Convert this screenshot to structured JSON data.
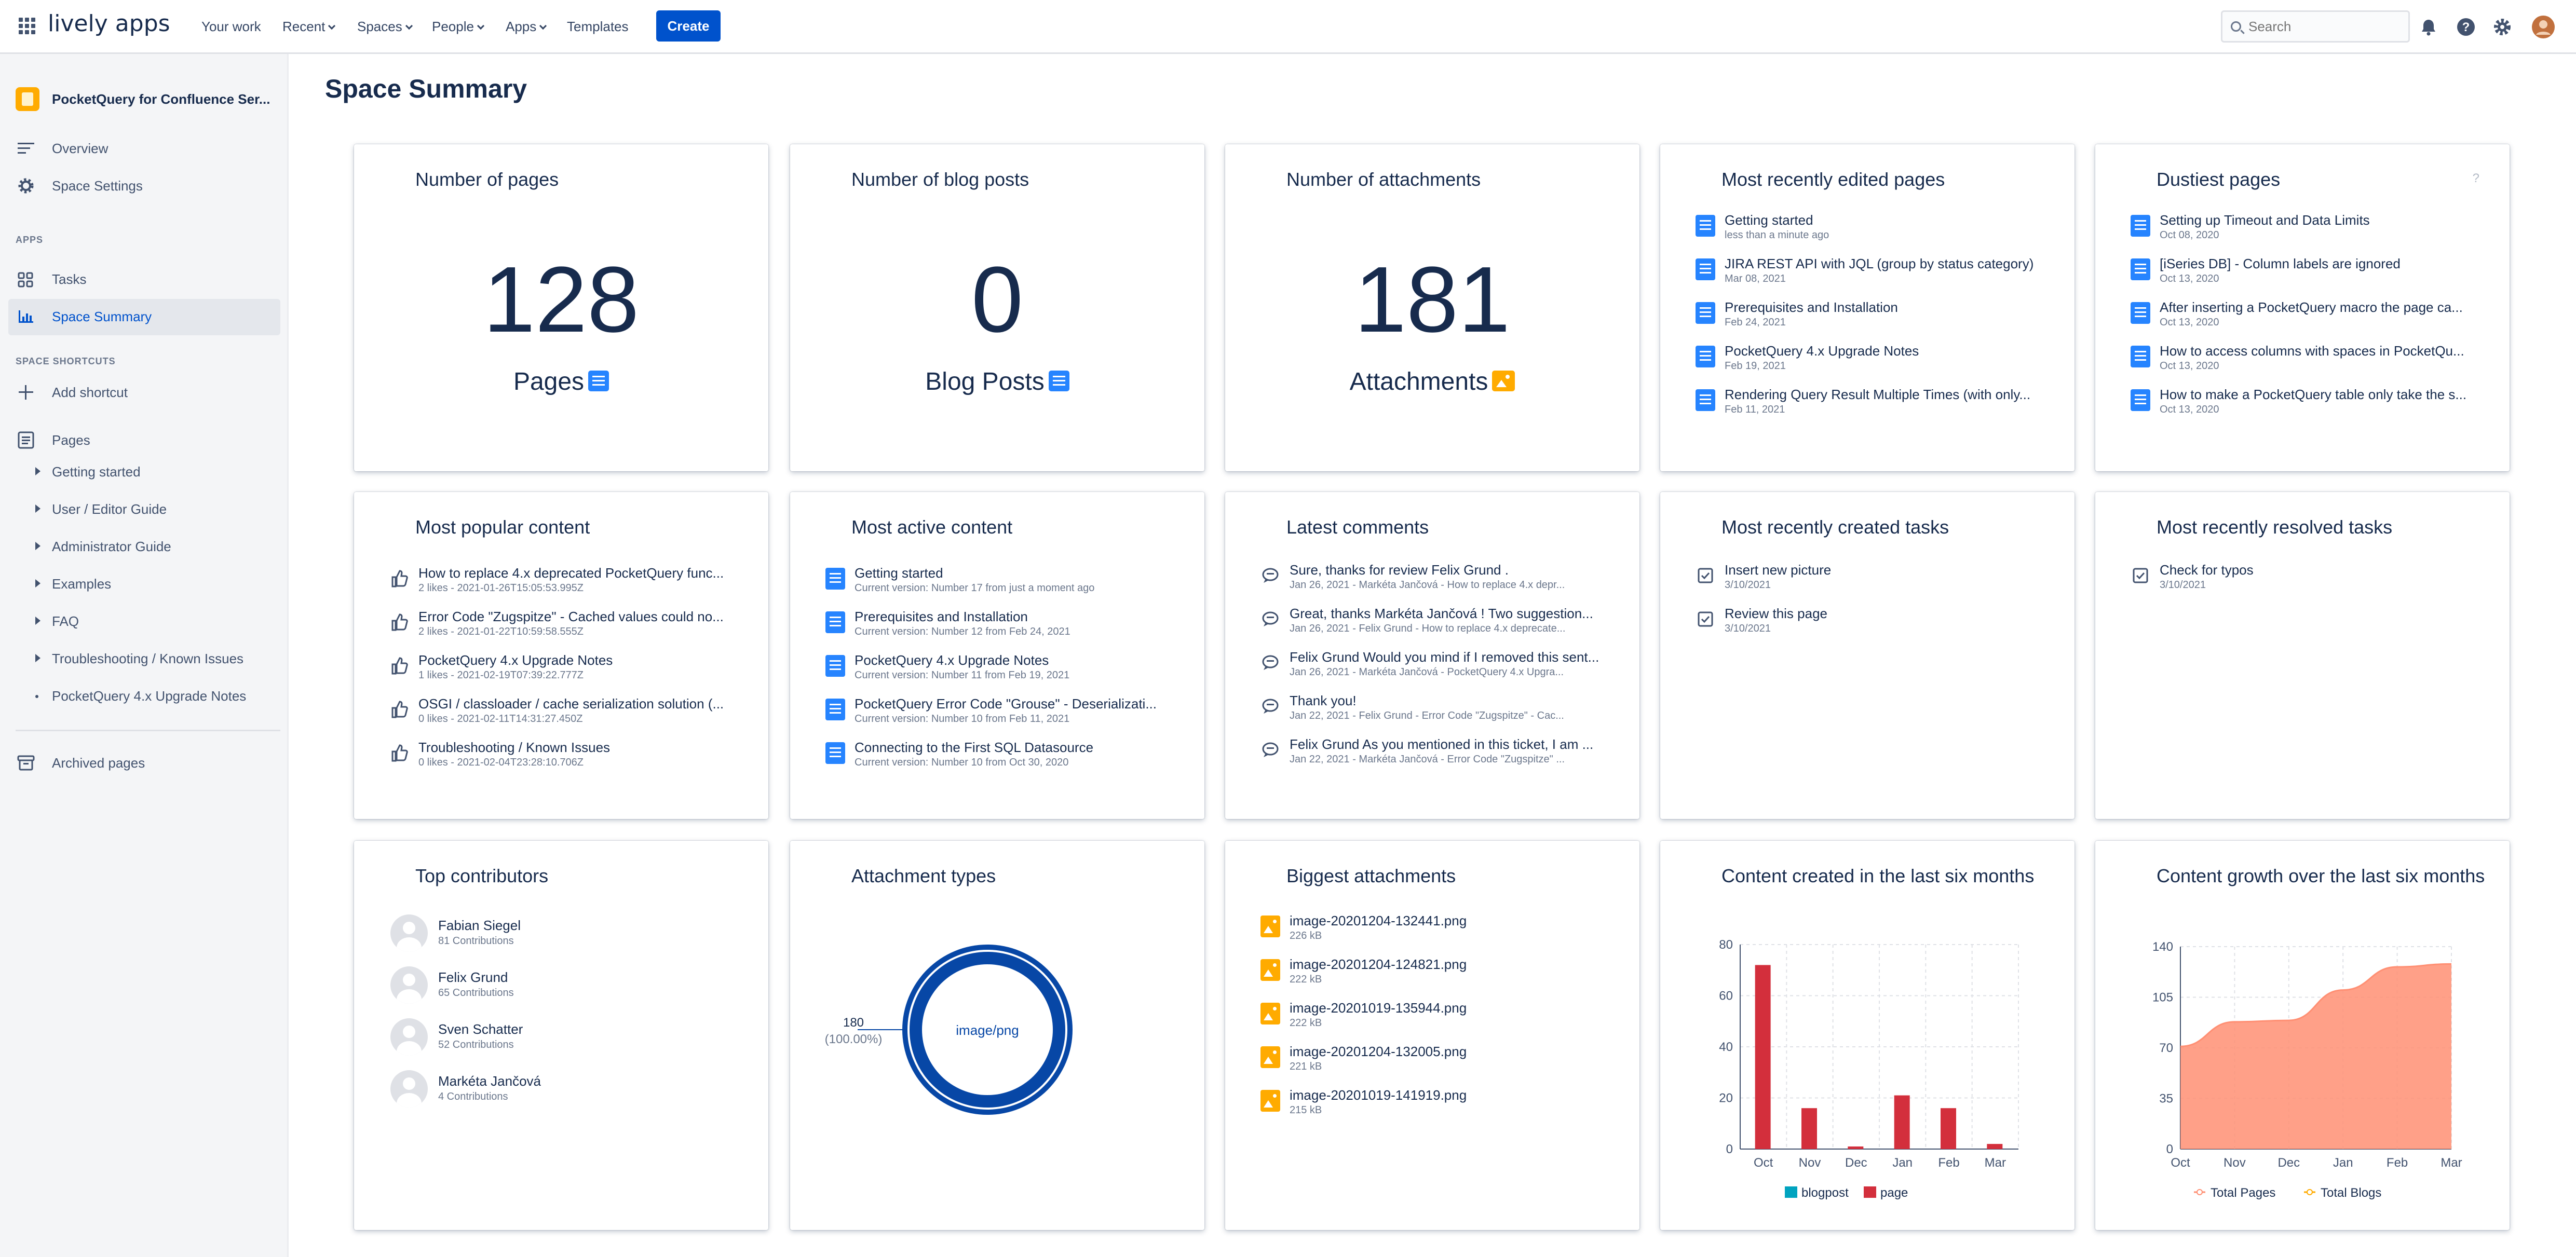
{
  "topbar": {
    "logo": "lively apps",
    "nav": [
      "Your work",
      "Recent",
      "Spaces",
      "People",
      "Apps",
      "Templates"
    ],
    "create_label": "Create",
    "search_placeholder": "Search"
  },
  "sidebar": {
    "space_title": "PocketQuery for Confluence Ser...",
    "overview": "Overview",
    "space_settings": "Space Settings",
    "apps_heading": "APPS",
    "tasks": "Tasks",
    "space_summary": "Space Summary",
    "shortcuts_heading": "SPACE SHORTCUTS",
    "add_shortcut": "Add shortcut",
    "pages": "Pages",
    "tree": [
      "Getting started",
      "User / Editor Guide",
      "Administrator Guide",
      "Examples",
      "FAQ",
      "Troubleshooting / Known Issues",
      "PocketQuery 4.x Upgrade Notes"
    ],
    "archived": "Archived pages"
  },
  "page_title": "Space Summary",
  "cards": {
    "pages": {
      "title": "Number of pages",
      "value": "128",
      "label": "Pages"
    },
    "blogs": {
      "title": "Number of blog posts",
      "value": "0",
      "label": "Blog Posts"
    },
    "attachments": {
      "title": "Number of attachments",
      "value": "181",
      "label": "Attachments"
    },
    "recent_edited": {
      "title": "Most recently edited pages",
      "items": [
        {
          "t": "Getting started",
          "s": "less than a minute ago"
        },
        {
          "t": "JIRA REST API with JQL (group by status category)",
          "s": "Mar 08, 2021"
        },
        {
          "t": "Prerequisites and Installation",
          "s": "Feb 24, 2021"
        },
        {
          "t": "PocketQuery 4.x Upgrade Notes",
          "s": "Feb 19, 2021"
        },
        {
          "t": "Rendering Query Result Multiple Times (with only...",
          "s": "Feb 11, 2021"
        }
      ]
    },
    "dustiest": {
      "title": "Dustiest pages",
      "help": "?",
      "items": [
        {
          "t": "Setting up Timeout and Data Limits",
          "s": "Oct 08, 2020"
        },
        {
          "t": "[iSeries DB] - Column labels are ignored",
          "s": "Oct 13, 2020"
        },
        {
          "t": "After inserting a PocketQuery macro the page ca...",
          "s": "Oct 13, 2020"
        },
        {
          "t": "How to access columns with spaces in PocketQu...",
          "s": "Oct 13, 2020"
        },
        {
          "t": "How to make a PocketQuery table only take the s...",
          "s": "Oct 13, 2020"
        }
      ]
    },
    "popular": {
      "title": "Most popular content",
      "items": [
        {
          "t": "How to replace 4.x deprecated PocketQuery func...",
          "s": "2 likes - 2021-01-26T15:05:53.995Z"
        },
        {
          "t": "Error Code \"Zugspitze\" - Cached values could no...",
          "s": "2 likes - 2021-01-22T10:59:58.555Z"
        },
        {
          "t": "PocketQuery 4.x Upgrade Notes",
          "s": "1 likes - 2021-02-19T07:39:22.777Z"
        },
        {
          "t": "OSGI / classloader / cache serialization solution (...",
          "s": "0 likes - 2021-02-11T14:31:27.450Z"
        },
        {
          "t": "Troubleshooting / Known Issues",
          "s": "0 likes - 2021-02-04T23:28:10.706Z"
        }
      ]
    },
    "active": {
      "title": "Most active content",
      "items": [
        {
          "t": "Getting started",
          "s": "Current version: Number 17 from just a moment ago"
        },
        {
          "t": "Prerequisites and Installation",
          "s": "Current version: Number 12 from Feb 24, 2021"
        },
        {
          "t": "PocketQuery 4.x Upgrade Notes",
          "s": "Current version: Number 11 from Feb 19, 2021"
        },
        {
          "t": "PocketQuery Error Code \"Grouse\" - Deserializati...",
          "s": "Current version: Number 10 from Feb 11, 2021"
        },
        {
          "t": "Connecting to the First SQL Datasource",
          "s": "Current version: Number 10 from Oct 30, 2020"
        }
      ]
    },
    "comments": {
      "title": "Latest comments",
      "items": [
        {
          "t": "Sure, thanks for review Felix Grund .",
          "s": "Jan 26, 2021 - Markéta Jančová - How to replace 4.x depr..."
        },
        {
          "t": "Great, thanks Markéta Jančová ! Two suggestion...",
          "s": "Jan 26, 2021 - Felix Grund - How to replace 4.x deprecate..."
        },
        {
          "t": "Felix Grund Would you mind if I removed this sent...",
          "s": "Jan 26, 2021 - Markéta Jančová - PocketQuery 4.x Upgra..."
        },
        {
          "t": "Thank you!",
          "s": "Jan 22, 2021 - Felix Grund - Error Code \"Zugspitze\" - Cac..."
        },
        {
          "t": "Felix Grund As you mentioned in this ticket, I am ...",
          "s": "Jan 22, 2021 - Markéta Jančová - Error Code \"Zugspitze\" ..."
        }
      ]
    },
    "created_tasks": {
      "title": "Most recently created tasks",
      "items": [
        {
          "t": "Insert new picture",
          "s": "3/10/2021"
        },
        {
          "t": "Review this page",
          "s": "3/10/2021"
        }
      ]
    },
    "resolved_tasks": {
      "title": "Most recently resolved tasks",
      "items": [
        {
          "t": "Check for typos",
          "s": "3/10/2021"
        }
      ]
    },
    "contributors": {
      "title": "Top contributors",
      "items": [
        {
          "n": "Fabian Siegel",
          "c": "81 Contributions"
        },
        {
          "n": "Felix Grund",
          "c": "65 Contributions"
        },
        {
          "n": "Sven Schatter",
          "c": "52 Contributions"
        },
        {
          "n": "Markéta Jančová",
          "c": "4 Contributions"
        }
      ]
    },
    "attachment_types": {
      "title": "Attachment types"
    },
    "biggest": {
      "title": "Biggest attachments",
      "items": [
        {
          "t": "image-20201204-132441.png",
          "s": "226 kB"
        },
        {
          "t": "image-20201204-124821.png",
          "s": "222 kB"
        },
        {
          "t": "image-20201019-135944.png",
          "s": "222 kB"
        },
        {
          "t": "image-20201204-132005.png",
          "s": "221 kB"
        },
        {
          "t": "image-20201019-141919.png",
          "s": "215 kB"
        }
      ]
    },
    "created_six": {
      "title": "Content created in the last six months"
    },
    "growth_six": {
      "title": "Content growth over the last six months"
    }
  },
  "chart_data": [
    {
      "type": "pie",
      "categories": [
        "image/png"
      ],
      "values": [
        180
      ],
      "slice_labels": [
        "180",
        "(100.00%)"
      ],
      "colors": [
        "#0747a6"
      ]
    },
    {
      "type": "bar",
      "categories": [
        "Oct",
        "Nov",
        "Dec",
        "Jan",
        "Feb",
        "Mar"
      ],
      "series": [
        {
          "name": "blogpost",
          "values": [
            0,
            0,
            0,
            0,
            0,
            0
          ],
          "color": "#00a3bf"
        },
        {
          "name": "page",
          "values": [
            72,
            16,
            1,
            21,
            16,
            2
          ],
          "color": "#d32f3c"
        }
      ],
      "ylim": [
        0,
        80
      ],
      "yticks": [
        0,
        20,
        40,
        60,
        80
      ],
      "grid": true,
      "legend": "bottom"
    },
    {
      "type": "area",
      "categories": [
        "Oct",
        "Nov",
        "Dec",
        "Jan",
        "Feb",
        "Mar"
      ],
      "series": [
        {
          "name": "Total Pages",
          "values": [
            71,
            88,
            89,
            110,
            126,
            128
          ],
          "color": "#ff8f73"
        },
        {
          "name": "Total Blogs",
          "values": [
            0,
            0,
            0,
            0,
            0,
            0
          ],
          "color": "#ffab00"
        }
      ],
      "ylim": [
        0,
        140
      ],
      "yticks": [
        0,
        35,
        70,
        105,
        140
      ],
      "grid": true,
      "legend": "bottom"
    }
  ]
}
